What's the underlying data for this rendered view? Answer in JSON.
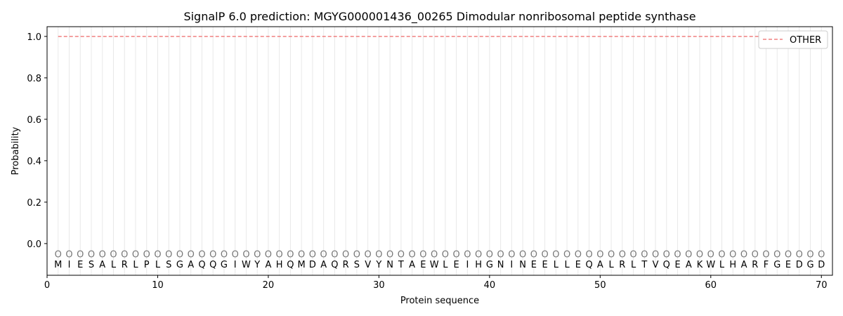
{
  "chart_data": {
    "type": "line",
    "title": "SignalP 6.0 prediction: MGYG000001436_00265 Dimodular nonribosomal peptide synthase",
    "xlabel": "Protein sequence",
    "ylabel": "Probability",
    "xlim": [
      0,
      71
    ],
    "ylim": [
      -0.153,
      1.047
    ],
    "xticks": [
      0,
      10,
      20,
      30,
      40,
      50,
      60,
      70
    ],
    "yticks": [
      0.0,
      0.2,
      0.4,
      0.6,
      0.8,
      1.0
    ],
    "ytick_labels": [
      "0.0",
      "0.2",
      "0.4",
      "0.6",
      "0.8",
      "1.0"
    ],
    "legend_position": "top-right",
    "series": [
      {
        "name": "OTHER",
        "color": "#f08080",
        "style": "dashed",
        "x_start": 1,
        "x_end": 70,
        "value": 1.0
      }
    ],
    "sequence": [
      "M",
      "I",
      "E",
      "S",
      "A",
      "L",
      "R",
      "L",
      "P",
      "L",
      "S",
      "G",
      "A",
      "Q",
      "Q",
      "G",
      "I",
      "W",
      "Y",
      "A",
      "H",
      "Q",
      "M",
      "D",
      "A",
      "Q",
      "R",
      "S",
      "V",
      "Y",
      "N",
      "T",
      "A",
      "E",
      "W",
      "L",
      "E",
      "I",
      "H",
      "G",
      "N",
      "I",
      "N",
      "E",
      "E",
      "L",
      "L",
      "E",
      "Q",
      "A",
      "L",
      "R",
      "L",
      "T",
      "V",
      "Q",
      "E",
      "A",
      "K",
      "W",
      "L",
      "H",
      "A",
      "R",
      "F",
      "G",
      "E",
      "D",
      "G",
      "D"
    ],
    "region_label": "O",
    "region_label_y": -0.05
  }
}
